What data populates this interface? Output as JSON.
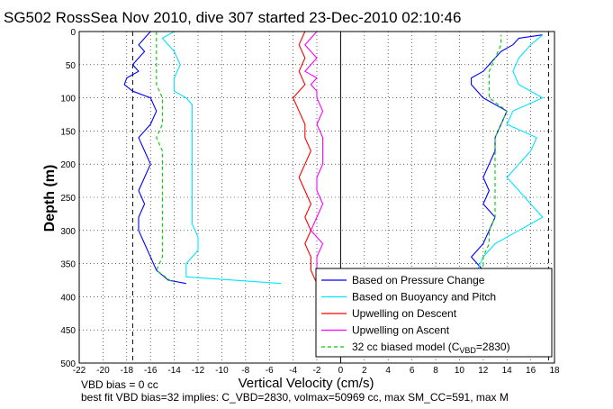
{
  "chart_data": {
    "type": "line",
    "title": "SG502 RossSea Nov 2010, dive 307 started 23-Dec-2010 02:10:46",
    "xlabel": "Vertical Velocity (cm/s)",
    "ylabel": "Depth (m)",
    "xlim": [
      -22,
      18
    ],
    "ylim": [
      0,
      500
    ],
    "y_reversed": true,
    "grid": true,
    "legend_position": "bottom-right",
    "xticks": [
      "-22",
      "-20",
      "-18",
      "-16",
      "-14",
      "-12",
      "-10",
      "-8",
      "-6",
      "-4",
      "-2",
      "0",
      "2",
      "4",
      "6",
      "8",
      "10",
      "12",
      "14",
      "16",
      "18"
    ],
    "yticks": [
      "0",
      "50",
      "100",
      "150",
      "200",
      "250",
      "300",
      "350",
      "400",
      "450",
      "500"
    ],
    "reference_lines": [
      {
        "x": -17.5,
        "style": "dashed"
      },
      {
        "x": 17.5,
        "style": "dashed"
      },
      {
        "x": 0,
        "style": "solid"
      }
    ],
    "series": [
      {
        "name": "Based on Pressure Change",
        "color": "#0000ff",
        "style": "solid",
        "descent": {
          "depth": [
            0,
            10,
            20,
            30,
            40,
            50,
            60,
            70,
            80,
            90,
            100,
            120,
            140,
            160,
            180,
            200,
            220,
            240,
            260,
            280,
            300,
            320,
            340,
            360,
            375,
            380
          ],
          "w": [
            -16,
            -16.5,
            -17,
            -16.5,
            -17,
            -17.5,
            -17,
            -18,
            -18.2,
            -17.5,
            -16,
            -15.5,
            -16,
            -17,
            -16.5,
            -16,
            -16.5,
            -17,
            -16.5,
            -17,
            -17,
            -16.5,
            -16,
            -15.5,
            -14.5,
            -13
          ]
        },
        "ascent": {
          "depth": [
            380,
            370,
            360,
            350,
            340,
            330,
            320,
            300,
            280,
            260,
            240,
            220,
            200,
            180,
            160,
            140,
            120,
            100,
            90,
            80,
            70,
            60,
            50,
            40,
            30,
            20,
            10,
            5
          ],
          "w": [
            12,
            11.5,
            12,
            11.5,
            11,
            11.5,
            12,
            12.5,
            13,
            12,
            12.5,
            12,
            12.5,
            13,
            13,
            13.5,
            14,
            12,
            11.5,
            11,
            11,
            12,
            12.5,
            13,
            13.5,
            14.5,
            15,
            17
          ]
        }
      },
      {
        "name": "Based on Buoyancy and Pitch",
        "color": "#00e5ff",
        "style": "solid",
        "descent": {
          "depth": [
            0,
            10,
            20,
            30,
            50,
            70,
            90,
            100,
            110,
            130,
            150,
            170,
            190,
            210,
            230,
            250,
            270,
            290,
            310,
            330,
            350,
            370,
            380
          ],
          "w": [
            -14,
            -15,
            -14.5,
            -14,
            -13.5,
            -14,
            -14,
            -13,
            -12.5,
            -12.5,
            -12.5,
            -12.5,
            -12.5,
            -12.5,
            -12.5,
            -12.5,
            -12.5,
            -12.5,
            -12,
            -12,
            -13,
            -13,
            -5
          ]
        },
        "ascent": {
          "depth": [
            380,
            360,
            340,
            320,
            300,
            280,
            260,
            240,
            220,
            200,
            180,
            160,
            140,
            120,
            100,
            80,
            60,
            40,
            20,
            5
          ],
          "w": [
            11,
            11.5,
            12,
            13,
            15,
            17,
            16,
            15,
            14,
            15,
            16,
            16.5,
            14,
            14.5,
            17,
            15,
            14.5,
            15,
            16,
            17
          ]
        }
      },
      {
        "name": "Upwelling on Descent",
        "color": "#ff0000",
        "style": "solid",
        "depth": [
          0,
          20,
          40,
          60,
          80,
          100,
          120,
          140,
          160,
          180,
          200,
          220,
          240,
          260,
          280,
          300,
          320,
          340,
          360,
          380
        ],
        "w": [
          -3,
          -3.5,
          -3,
          -3.5,
          -3,
          -4,
          -3.5,
          -3,
          -3,
          -2.5,
          -3,
          -3.5,
          -3,
          -2.5,
          -3,
          -2.5,
          -3,
          -2.5,
          -2.5,
          -2
        ]
      },
      {
        "name": "Upwelling on Ascent",
        "color": "#ff00ff",
        "style": "solid",
        "depth": [
          0,
          10,
          20,
          30,
          40,
          50,
          60,
          70,
          80,
          90,
          100,
          120,
          140,
          160,
          180,
          200,
          220,
          240,
          260,
          280,
          300,
          320,
          340,
          360,
          380
        ],
        "w": [
          -2,
          -2.5,
          -3,
          -2.5,
          -2,
          -2.5,
          -3,
          -2,
          -2.5,
          -2,
          -2,
          -1.5,
          -2,
          -1.5,
          -1.5,
          -1.5,
          -2,
          -2,
          -1.5,
          -2,
          -2.5,
          -1.5,
          -2,
          -2,
          -2
        ]
      },
      {
        "name": "32 cc biased model (C",
        "name_sub": "VBD",
        "name_suffix": "=2830)",
        "color": "#00cc00",
        "style": "dashed",
        "descent": {
          "depth": [
            0,
            20,
            40,
            60,
            80,
            100,
            120,
            140,
            160,
            180,
            200,
            220,
            240,
            260,
            280,
            300,
            320,
            340,
            360,
            380
          ],
          "w": [
            -15.5,
            -15.5,
            -15.5,
            -15.5,
            -15.5,
            -15,
            -15,
            -15,
            -15.5,
            -15,
            -15,
            -15,
            -15,
            -15,
            -15,
            -15,
            -15,
            -15,
            -15.5,
            -14
          ]
        },
        "ascent": {
          "depth": [
            380,
            360,
            340,
            320,
            300,
            280,
            260,
            240,
            220,
            200,
            180,
            160,
            140,
            120,
            100,
            80,
            60,
            40,
            20,
            5
          ],
          "w": [
            11.5,
            12,
            12,
            12.5,
            12.5,
            13,
            13,
            13,
            13,
            13,
            13,
            13,
            13.5,
            14,
            12.5,
            12.5,
            12.5,
            13,
            13.5,
            13.5
          ]
        }
      }
    ]
  },
  "notes": {
    "line1": "VBD bias = 0 cc",
    "line2": "best fit VBD bias=32 implies: C_VBD=2830, volmax=50969 cc, max SM_CC=591, max M"
  }
}
